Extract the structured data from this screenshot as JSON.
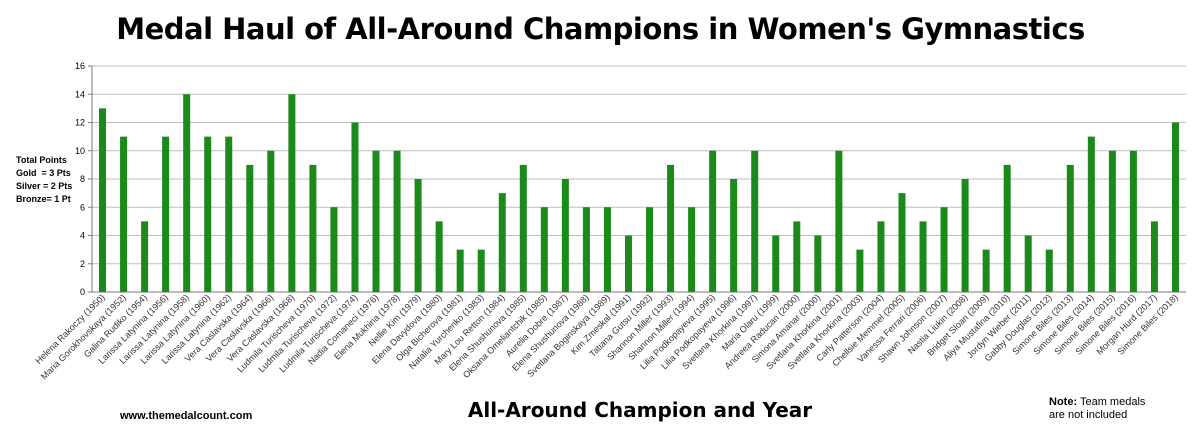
{
  "chart_data": {
    "type": "bar",
    "title": "Medal Haul of All-Around Champions in Women's Gymnastics",
    "xlabel": "All-Around Champion and Year",
    "ylim": [
      0,
      16
    ],
    "yticks": [
      0,
      2,
      4,
      6,
      8,
      10,
      12,
      14,
      16
    ],
    "grid": true,
    "bar_color": "#1a8a1a",
    "legend_lines": [
      "Total Points",
      "Gold  = 3 Pts",
      "Silver = 2 Pts",
      "Bronze= 1 Pt"
    ],
    "categories": [
      "Helena Rakoczy (1950)",
      "Maria Gorokhovskaya (1952)",
      "Galina Rudiko (1954)",
      "Larissa Latynina (1956)",
      "Larissa Latynina (1958)",
      "Larissa Latynina (1960)",
      "Larissa Latynina (1962)",
      "Vera Caslavska (1964)",
      "Vera Caslavska (1966)",
      "Vera Caslavska (1968)",
      "Ludmila Turischeva (1970)",
      "Ludmila Turischeva (1972)",
      "Ludmila Turischeva (1974)",
      "Nadia Comaneci (1976)",
      "Elena Mukhina (1978)",
      "Nellie Kim (1979)",
      "Elena Davydova (1980)",
      "Olga Bicherova (1981)",
      "Natalia Yurchenko (1983)",
      "Mary Lou Retton (1984)",
      "Elena Shushunova (1985)",
      "Oksana Omeliantchik (1985)",
      "Aurelia Dobre (1987)",
      "Elena Shushunova (1988)",
      "Svetlana Boginskaya (1989)",
      "Kim Zmeskal (1991)",
      "Tatiana Gutsu (1992)",
      "Shannon Miller (1993)",
      "Shannon Miller (1994)",
      "Lilia Podkopayeva (1995)",
      "Lilia Podkopayeva (1996)",
      "Svetlana Khorkina (1997)",
      "Maria Olaru (1999)",
      "Andreea Raducan (2000)",
      "Simona Amanar (2000)",
      "Svetlana Khorkina (2001)",
      "Svetlana Khorkina (2003)",
      "Carly Patterson (2004)",
      "Chellsie Memmel (2005)",
      "Vanessa Ferrari (2006)",
      "Shawn Johnson (2007)",
      "Nastia Liukin (2008)",
      "Bridget Sloan (2009)",
      "Aliya Mustafina (2010)",
      "Jordyn Wieber (2011)",
      "Gabby Douglas (2012)",
      "Simone Biles (2013)",
      "Simone Biles (2014)",
      "Simone Biles (2015)",
      "Simone Biles (2016)",
      "Morgan Hurd (2017)",
      "Simone Biles (2018)"
    ],
    "values": [
      13,
      11,
      5,
      11,
      14,
      11,
      11,
      9,
      10,
      14,
      9,
      6,
      12,
      10,
      10,
      8,
      5,
      3,
      3,
      7,
      9,
      6,
      8,
      6,
      6,
      4,
      6,
      9,
      6,
      10,
      8,
      10,
      4,
      5,
      4,
      10,
      3,
      5,
      7,
      5,
      6,
      8,
      3,
      9,
      4,
      3,
      9,
      11,
      10,
      10,
      5,
      12
    ]
  },
  "ylegend": {
    "line1": "Total Points",
    "line2": "Gold  = 3 Pts",
    "line3": "Silver = 2 Pts",
    "line4": "Bronze= 1 Pt"
  },
  "footer": {
    "source": "www.themedalcount.com",
    "note_bold": "Note:",
    "note_line1": " Team medals",
    "note_line2": "are not included"
  }
}
